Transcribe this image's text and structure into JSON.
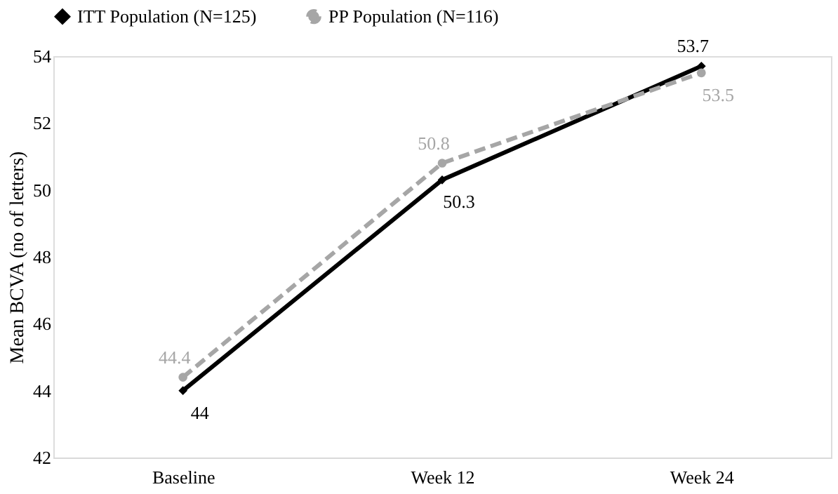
{
  "chart_data": {
    "type": "line",
    "ylabel": "Mean BCVA (no of letters)",
    "categories": [
      "Baseline",
      "Week 12",
      "Week 24"
    ],
    "series": [
      {
        "name": "ITT Population (N=125)",
        "color": "#000000",
        "values": [
          44,
          50.3,
          53.7
        ],
        "marker": "diamond",
        "line_style": "solid"
      },
      {
        "name": "PP Population (N=116)",
        "color": "#a6a6a6",
        "values": [
          44.4,
          50.8,
          53.5
        ],
        "marker": "circle",
        "line_style": "dashed"
      }
    ],
    "ylim": [
      42,
      54
    ],
    "yticks": [
      42,
      44,
      46,
      48,
      50,
      52,
      54
    ],
    "grid": false,
    "legend": "top",
    "data_labels": true
  }
}
